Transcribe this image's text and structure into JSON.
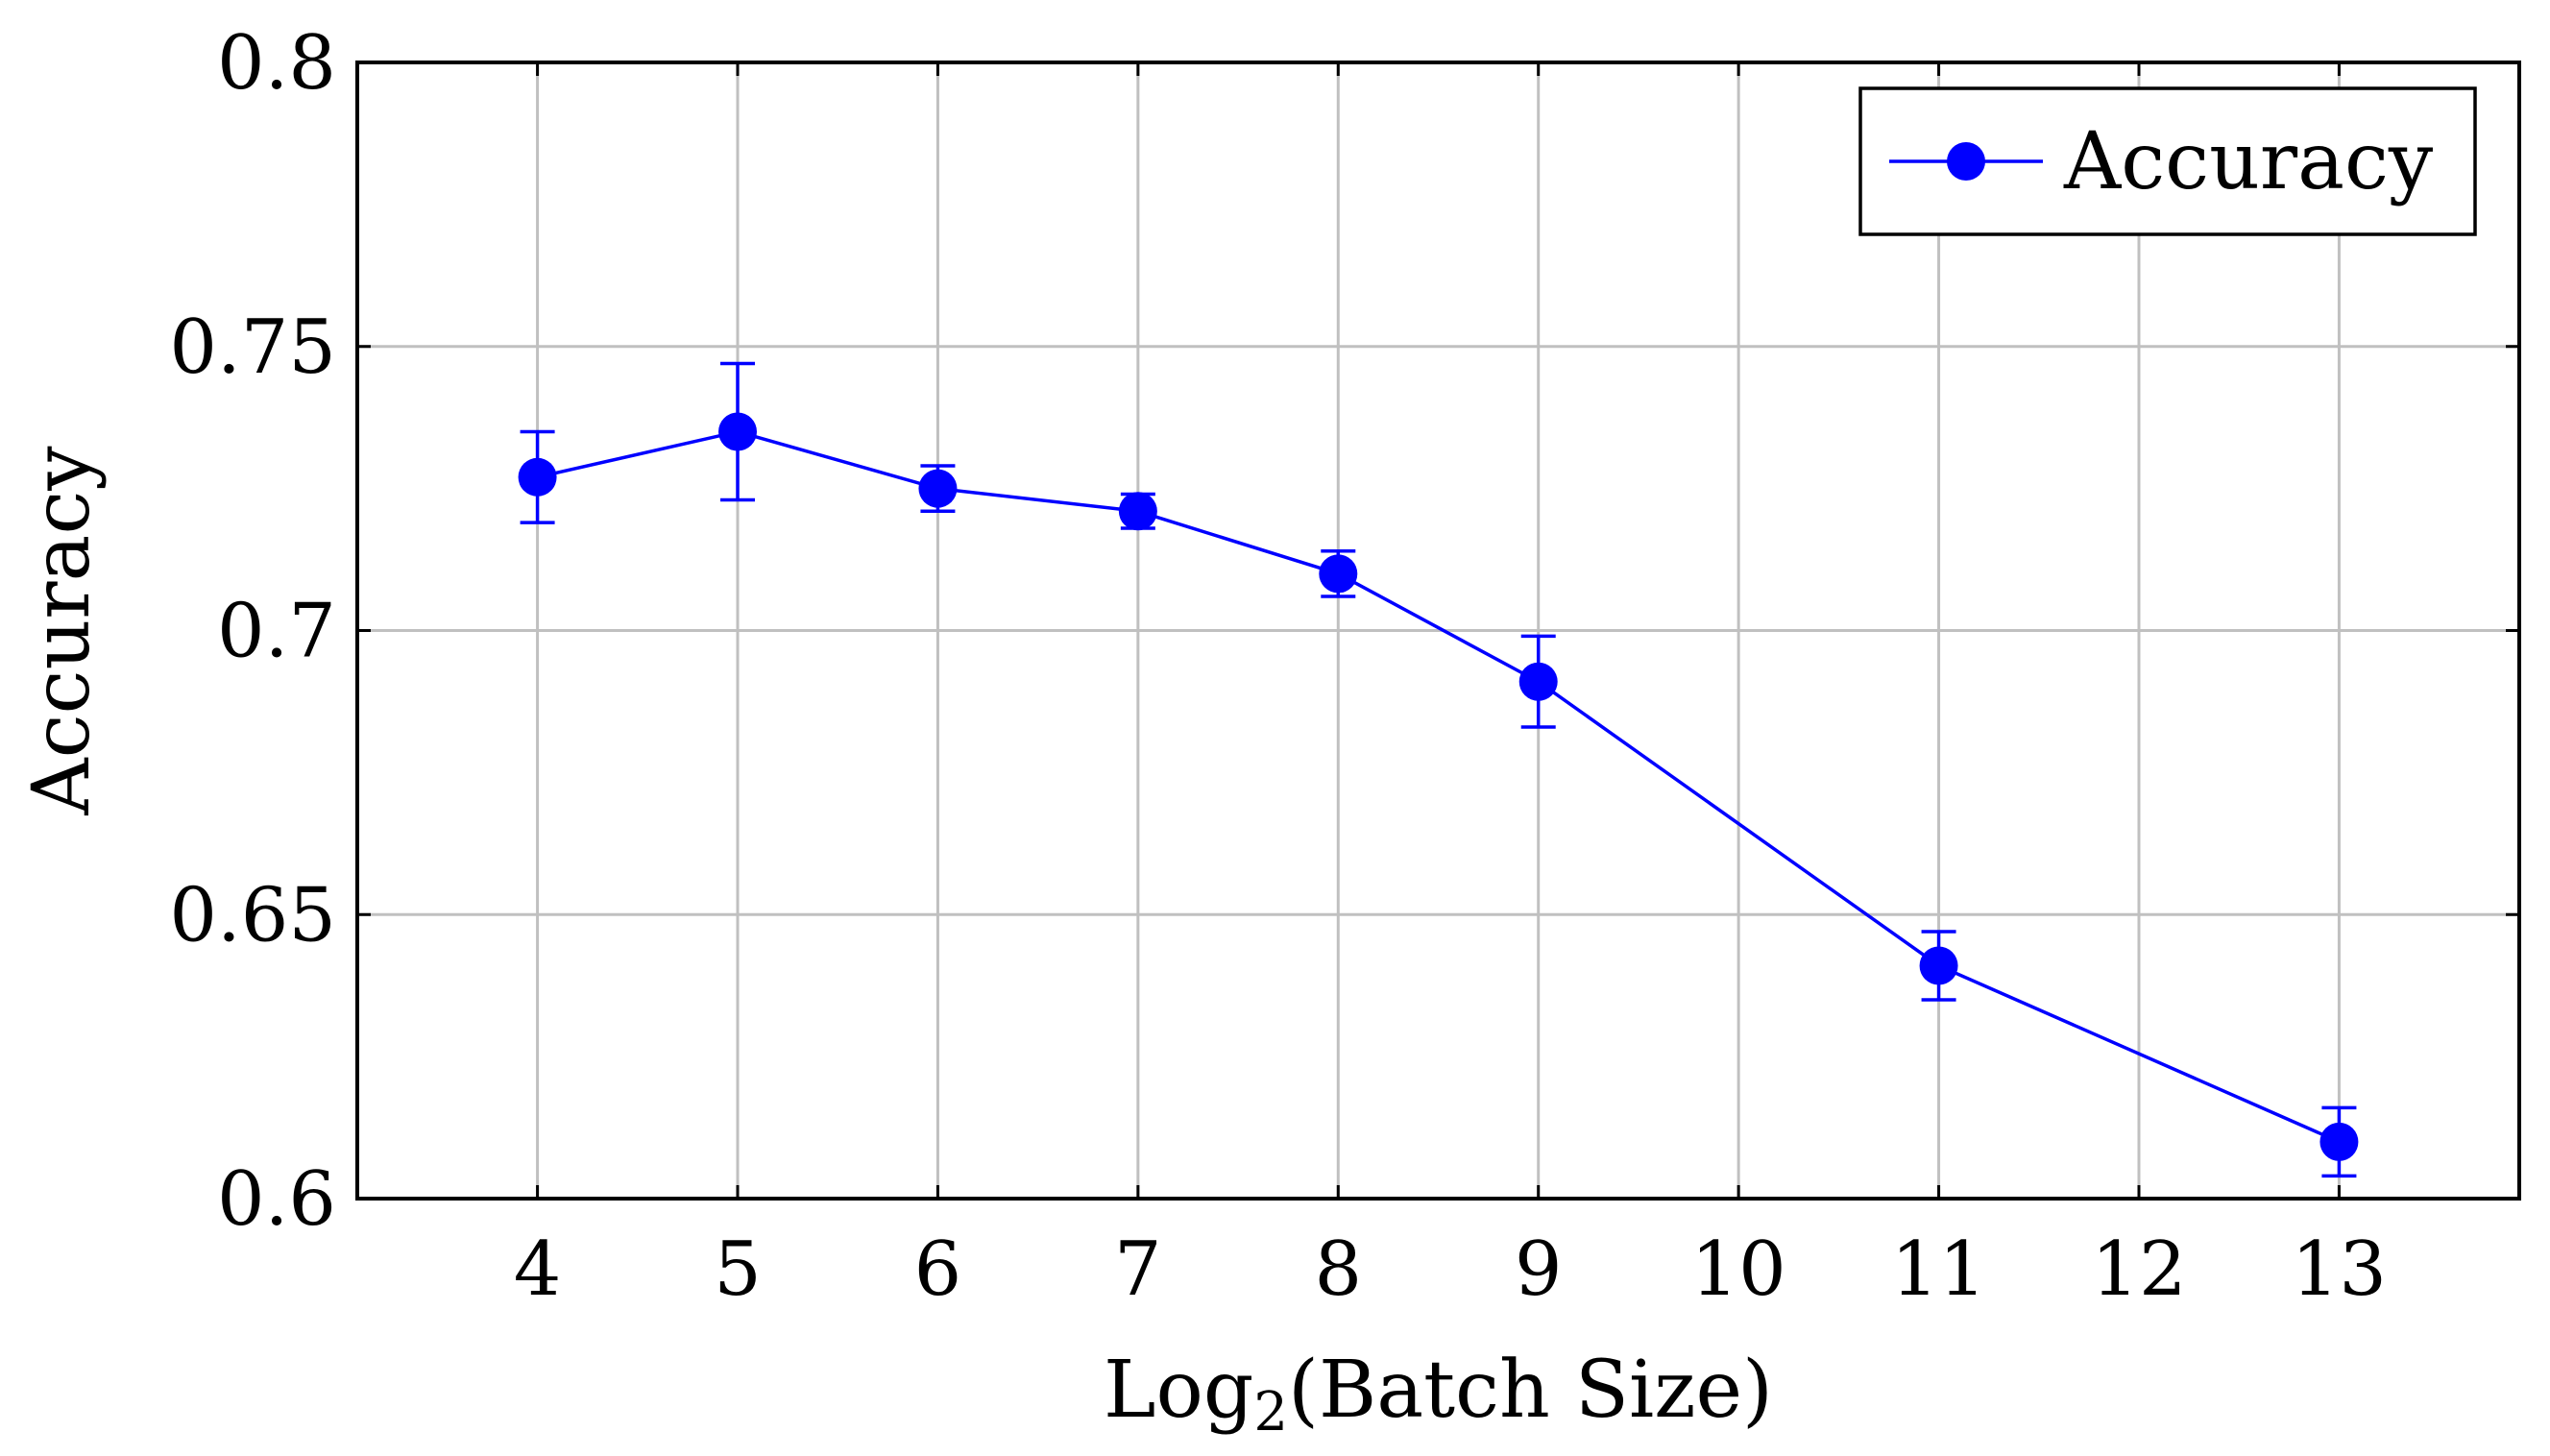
{
  "chart_data": {
    "type": "line",
    "title": "",
    "xlabel_main": "Log",
    "xlabel_sub": "2",
    "xlabel_rest": "(Batch Size)",
    "ylabel": "Accuracy",
    "categories": [
      "4",
      "5",
      "6",
      "7",
      "8",
      "9",
      "10",
      "11",
      "12",
      "13"
    ],
    "ylim": [
      0.6,
      0.8
    ],
    "yticks": [
      0.6,
      0.65,
      0.7,
      0.75,
      0.8
    ],
    "ytick_labels": [
      "0.6",
      "0.65",
      "0.7",
      "0.75",
      "0.8"
    ],
    "grid": true,
    "legend_position": "top-right",
    "series": [
      {
        "name": "Accuracy",
        "color": "#0000ff",
        "points": [
          {
            "x": "4",
            "y": 0.727,
            "err": 0.008
          },
          {
            "x": "5",
            "y": 0.735,
            "err": 0.012
          },
          {
            "x": "6",
            "y": 0.725,
            "err": 0.004
          },
          {
            "x": "7",
            "y": 0.721,
            "err": 0.003
          },
          {
            "x": "8",
            "y": 0.71,
            "err": 0.004
          },
          {
            "x": "9",
            "y": 0.691,
            "err": 0.008
          },
          {
            "x": "11",
            "y": 0.641,
            "err": 0.006
          },
          {
            "x": "13",
            "y": 0.61,
            "err": 0.006
          }
        ]
      }
    ]
  }
}
